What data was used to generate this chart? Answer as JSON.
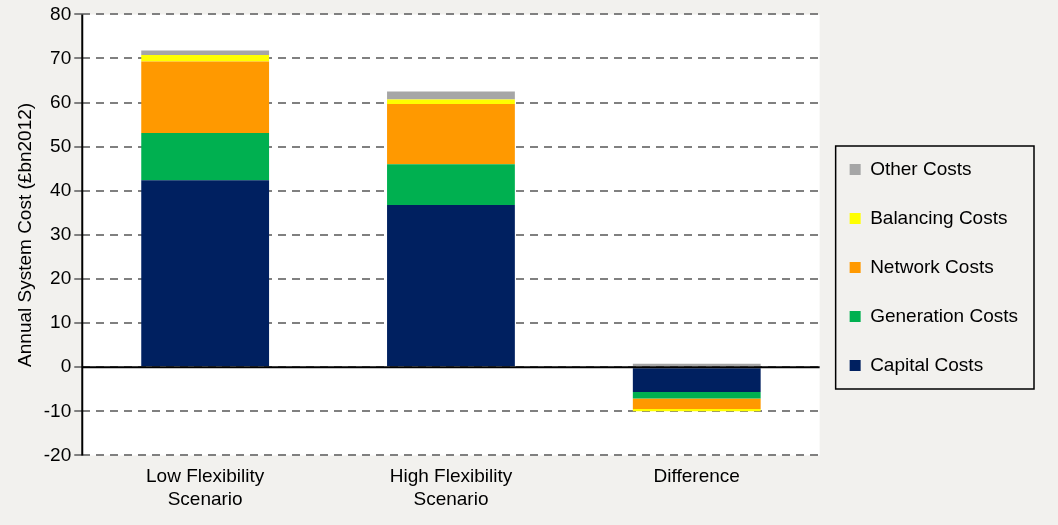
{
  "chart_data": {
    "type": "bar",
    "stacked": true,
    "ylabel": "Annual System Cost (£bn2012)",
    "categories": [
      "Low Flexibility Scenario",
      "High Flexibility Scenario",
      "Difference"
    ],
    "series": [
      {
        "name": "Capital Costs",
        "color": "#002060",
        "values": [
          42.4,
          36.8,
          -5.6
        ]
      },
      {
        "name": "Generation Costs",
        "color": "#00b050",
        "values": [
          10.7,
          9.2,
          -1.5
        ]
      },
      {
        "name": "Network Costs",
        "color": "#ff9900",
        "values": [
          16.2,
          13.7,
          -2.4
        ]
      },
      {
        "name": "Balancing Costs",
        "color": "#ffff00",
        "values": [
          1.5,
          1.0,
          -0.5
        ]
      },
      {
        "name": "Other Costs",
        "color": "#a6a6a6",
        "values": [
          1.0,
          1.8,
          0.8
        ]
      }
    ],
    "ylim": [
      -20,
      80
    ],
    "yticks": [
      -20,
      -10,
      0,
      10,
      20,
      30,
      40,
      50,
      60,
      70,
      80
    ],
    "grid": "y",
    "legend": "right"
  }
}
